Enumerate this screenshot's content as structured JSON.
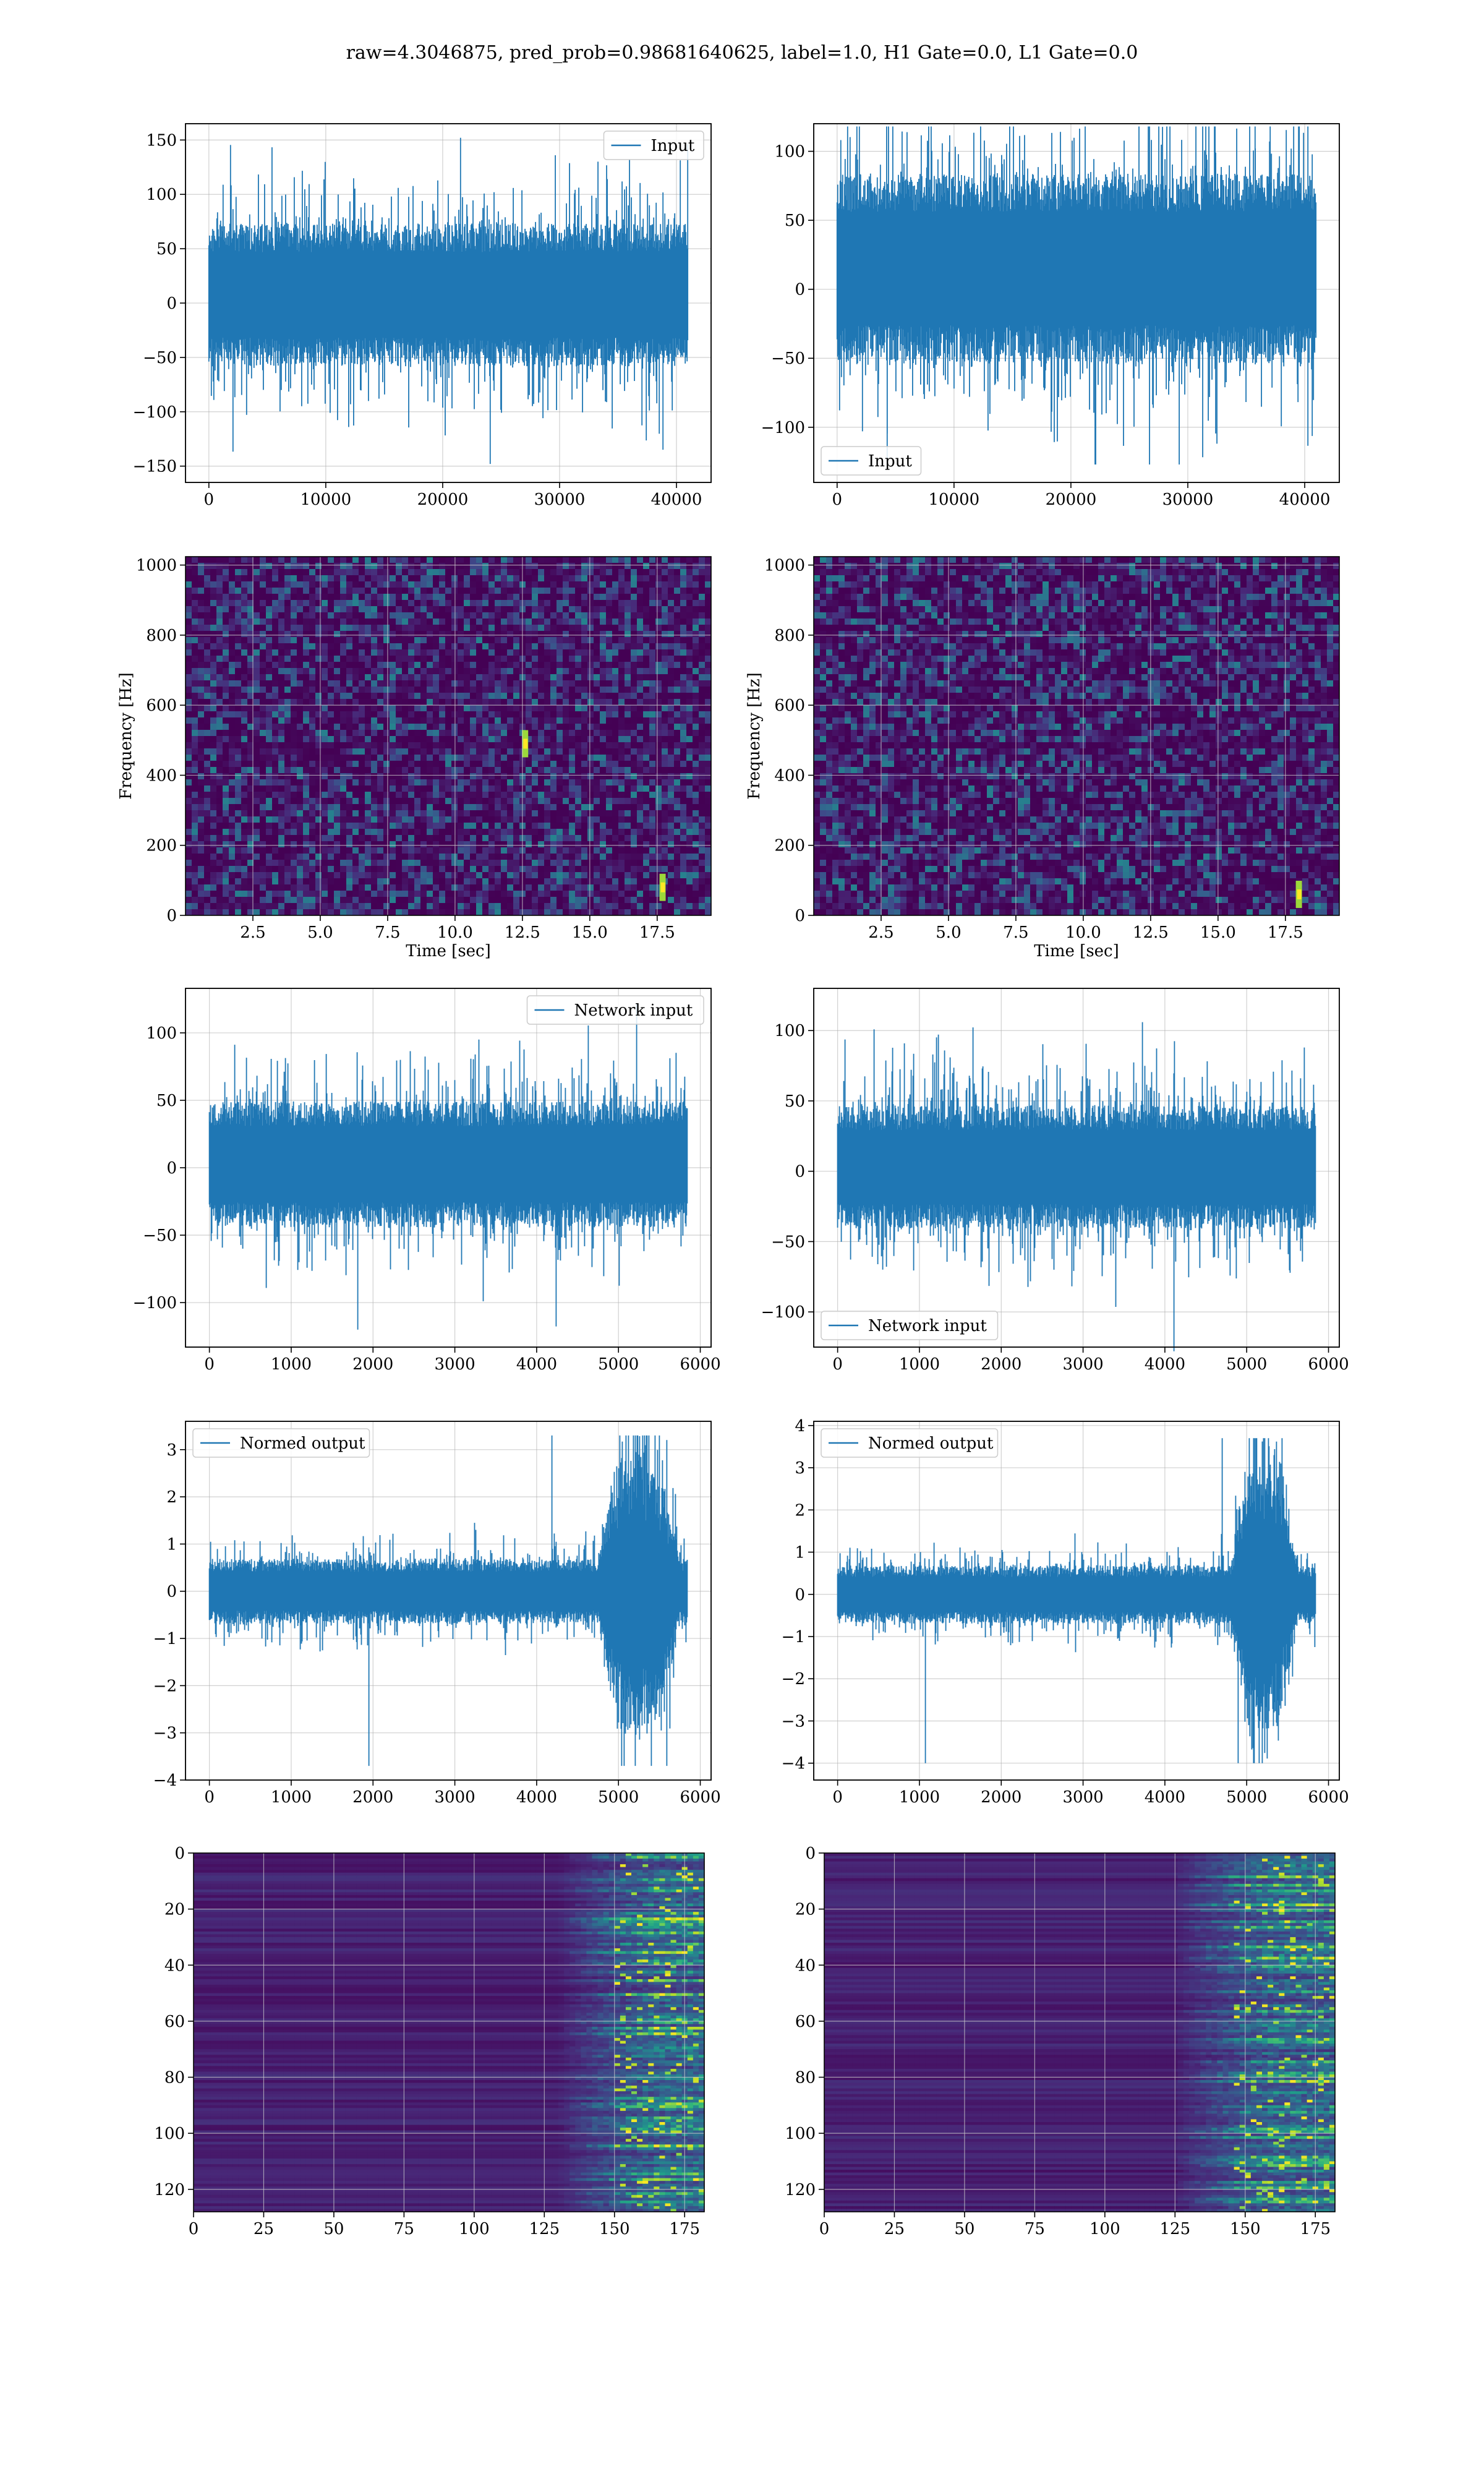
{
  "suptitle": "raw=4.3046875, pred_prob=0.98681640625, label=1.0, H1 Gate=0.0, L1 Gate=0.0",
  "colors": {
    "line": "#1f77b4",
    "grid": "#b0b0b0",
    "viridis_low": "#440154",
    "viridis_high": "#fde725"
  },
  "chart_data": [
    {
      "id": "r1c1",
      "type": "line",
      "title": "",
      "xlabel": "",
      "ylabel": "",
      "xlim": [
        -2000,
        42960
      ],
      "ylim": [
        -165,
        165
      ],
      "xticks": [
        0,
        10000,
        20000,
        30000,
        40000
      ],
      "yticks": [
        -150,
        -100,
        -50,
        0,
        50,
        100,
        150
      ],
      "xtick_labels": [
        "0",
        "10000",
        "20000",
        "30000",
        "40000"
      ],
      "ytick_labels": [
        "−150",
        "−100",
        "−50",
        "0",
        "50",
        "100",
        "150"
      ],
      "legend": {
        "labels": [
          "Input"
        ],
        "loc": "upper right"
      },
      "grid": true,
      "series": [
        {
          "name": "Input",
          "n": 40960,
          "envelope": {
            "band": [
              -45,
              60
            ],
            "peak_max": 152,
            "peak_min": -148
          }
        }
      ]
    },
    {
      "id": "r1c2",
      "type": "line",
      "title": "",
      "xlabel": "",
      "ylabel": "",
      "xlim": [
        -2000,
        42960
      ],
      "ylim": [
        -140,
        120
      ],
      "xticks": [
        0,
        10000,
        20000,
        30000,
        40000
      ],
      "yticks": [
        -100,
        -50,
        0,
        50,
        100
      ],
      "xtick_labels": [
        "0",
        "10000",
        "20000",
        "30000",
        "40000"
      ],
      "ytick_labels": [
        "−100",
        "−50",
        "0",
        "50",
        "100"
      ],
      "legend": {
        "labels": [
          "Input"
        ],
        "loc": "lower left"
      },
      "grid": true,
      "series": [
        {
          "name": "Input",
          "n": 40960,
          "envelope": {
            "band": [
              -40,
              70
            ],
            "peak_max": 118,
            "peak_min": -127
          }
        }
      ]
    },
    {
      "id": "r2c1",
      "type": "heatmap",
      "title": "",
      "xlabel": "Time [sec]",
      "ylabel": "Frequency [Hz]",
      "xlim": [
        0,
        19.5
      ],
      "ylim": [
        0,
        1024
      ],
      "xticks": [
        2.5,
        5.0,
        7.5,
        10.0,
        12.5,
        15.0,
        17.5
      ],
      "yticks": [
        0,
        200,
        400,
        600,
        800,
        1000
      ],
      "xtick_labels": [
        "2.5",
        "5.0",
        "7.5",
        "10.0",
        "12.5",
        "15.0",
        "17.5"
      ],
      "ytick_labels": [
        "0",
        "200",
        "400",
        "600",
        "800",
        "1000"
      ],
      "colormap": "viridis",
      "grid": true,
      "dark_band_hz": [
        485,
        500
      ],
      "hotspots": [
        [
          12.6,
          490
        ],
        [
          17.7,
          80
        ]
      ]
    },
    {
      "id": "r2c2",
      "type": "heatmap",
      "title": "",
      "xlabel": "Time [sec]",
      "ylabel": "Frequency [Hz]",
      "xlim": [
        0,
        19.5
      ],
      "ylim": [
        0,
        1024
      ],
      "xticks": [
        2.5,
        5.0,
        7.5,
        10.0,
        12.5,
        15.0,
        17.5
      ],
      "yticks": [
        0,
        200,
        400,
        600,
        800,
        1000
      ],
      "xtick_labels": [
        "2.5",
        "5.0",
        "7.5",
        "10.0",
        "12.5",
        "15.0",
        "17.5"
      ],
      "ytick_labels": [
        "0",
        "200",
        "400",
        "600",
        "800",
        "1000"
      ],
      "colormap": "viridis",
      "grid": true,
      "dark_band_hz": [
        485,
        500
      ],
      "hotspots": [
        [
          18.0,
          60
        ]
      ]
    },
    {
      "id": "r3c1",
      "type": "line",
      "title": "",
      "xlabel": "",
      "ylabel": "",
      "xlim": [
        -292,
        6132
      ],
      "ylim": [
        -133,
        133
      ],
      "xticks": [
        0,
        1000,
        2000,
        3000,
        4000,
        5000,
        6000
      ],
      "yticks": [
        -100,
        -50,
        0,
        50,
        100
      ],
      "xtick_labels": [
        "0",
        "1000",
        "2000",
        "3000",
        "4000",
        "5000",
        "6000"
      ],
      "ytick_labels": [
        "−100",
        "−50",
        "0",
        "50",
        "100"
      ],
      "legend": {
        "labels": [
          "Network input"
        ],
        "loc": "upper right"
      },
      "grid": true,
      "series": [
        {
          "name": "Network input",
          "n": 5840,
          "envelope": {
            "band": [
              -35,
              40
            ],
            "peak_max": 122,
            "peak_min": -120
          }
        }
      ]
    },
    {
      "id": "r3c2",
      "type": "line",
      "title": "",
      "xlabel": "",
      "ylabel": "",
      "xlim": [
        -292,
        6132
      ],
      "ylim": [
        -125,
        130
      ],
      "xticks": [
        0,
        1000,
        2000,
        3000,
        4000,
        5000,
        6000
      ],
      "yticks": [
        -100,
        -50,
        0,
        50,
        100
      ],
      "xtick_labels": [
        "0",
        "1000",
        "2000",
        "3000",
        "4000",
        "5000",
        "6000"
      ],
      "ytick_labels": [
        "−100",
        "−50",
        "0",
        "50",
        "100"
      ],
      "legend": {
        "labels": [
          "Network input"
        ],
        "loc": "lower left"
      },
      "grid": true,
      "series": [
        {
          "name": "Network input",
          "n": 5840,
          "envelope": {
            "band": [
              -32,
              38
            ],
            "peak_max": 106,
            "peak_min": -128
          }
        }
      ]
    },
    {
      "id": "r4c1",
      "type": "line",
      "title": "",
      "xlabel": "",
      "ylabel": "",
      "xlim": [
        -292,
        6132
      ],
      "ylim": [
        -4.0,
        3.6
      ],
      "xticks": [
        0,
        1000,
        2000,
        3000,
        4000,
        5000,
        6000
      ],
      "yticks": [
        -4,
        -3,
        -2,
        -1,
        0,
        1,
        2,
        3
      ],
      "xtick_labels": [
        "0",
        "1000",
        "2000",
        "3000",
        "4000",
        "5000",
        "6000"
      ],
      "ytick_labels": [
        "−4",
        "−3",
        "−2",
        "−1",
        "0",
        "1",
        "2",
        "3"
      ],
      "legend": {
        "labels": [
          "Normed output"
        ],
        "loc": "upper left"
      },
      "grid": true,
      "series": [
        {
          "name": "Normed output",
          "n": 5840,
          "envelope": {
            "band": [
              -0.55,
              0.55
            ],
            "burst_x": [
              4750,
              5850
            ],
            "burst_amp": 3.2,
            "peak_max": 3.3,
            "peak_min": -3.7
          }
        }
      ]
    },
    {
      "id": "r4c2",
      "type": "line",
      "title": "",
      "xlabel": "",
      "ylabel": "",
      "xlim": [
        -292,
        6132
      ],
      "ylim": [
        -4.4,
        4.1
      ],
      "xticks": [
        0,
        1000,
        2000,
        3000,
        4000,
        5000,
        6000
      ],
      "yticks": [
        -4,
        -3,
        -2,
        -1,
        0,
        1,
        2,
        3,
        4
      ],
      "xtick_labels": [
        "0",
        "1000",
        "2000",
        "3000",
        "4000",
        "5000",
        "6000"
      ],
      "ytick_labels": [
        "−4",
        "−3",
        "−2",
        "−1",
        "0",
        "1",
        "2",
        "3",
        "4"
      ],
      "legend": {
        "labels": [
          "Normed output"
        ],
        "loc": "upper left"
      },
      "grid": true,
      "series": [
        {
          "name": "Normed output",
          "n": 5840,
          "envelope": {
            "band": [
              -0.55,
              0.55
            ],
            "burst_x": [
              4800,
              5700
            ],
            "burst_amp": 3.6,
            "peak_max": 3.7,
            "peak_min": -4.0
          }
        }
      ]
    },
    {
      "id": "r5c1",
      "type": "heatmap",
      "title": "",
      "xlabel": "",
      "ylabel": "",
      "xlim": [
        0,
        182
      ],
      "ylim": [
        128,
        0
      ],
      "xticks": [
        0,
        25,
        50,
        75,
        100,
        125,
        150,
        175
      ],
      "yticks": [
        0,
        20,
        40,
        60,
        80,
        100,
        120
      ],
      "xtick_labels": [
        "0",
        "25",
        "50",
        "75",
        "100",
        "125",
        "150",
        "175"
      ],
      "ytick_labels": [
        "0",
        "20",
        "40",
        "60",
        "80",
        "100",
        "120"
      ],
      "colormap": "viridis",
      "grid": true,
      "activity_start_x": 130,
      "activity_peak_x": 165
    },
    {
      "id": "r5c2",
      "type": "heatmap",
      "title": "",
      "xlabel": "",
      "ylabel": "",
      "xlim": [
        0,
        182
      ],
      "ylim": [
        128,
        0
      ],
      "xticks": [
        0,
        25,
        50,
        75,
        100,
        125,
        150,
        175
      ],
      "yticks": [
        0,
        20,
        40,
        60,
        80,
        100,
        120
      ],
      "xtick_labels": [
        "0",
        "25",
        "50",
        "75",
        "100",
        "125",
        "150",
        "175"
      ],
      "ytick_labels": [
        "0",
        "20",
        "40",
        "60",
        "80",
        "100",
        "120"
      ],
      "colormap": "viridis",
      "grid": true,
      "activity_start_x": 125,
      "activity_peak_x": 160
    }
  ]
}
